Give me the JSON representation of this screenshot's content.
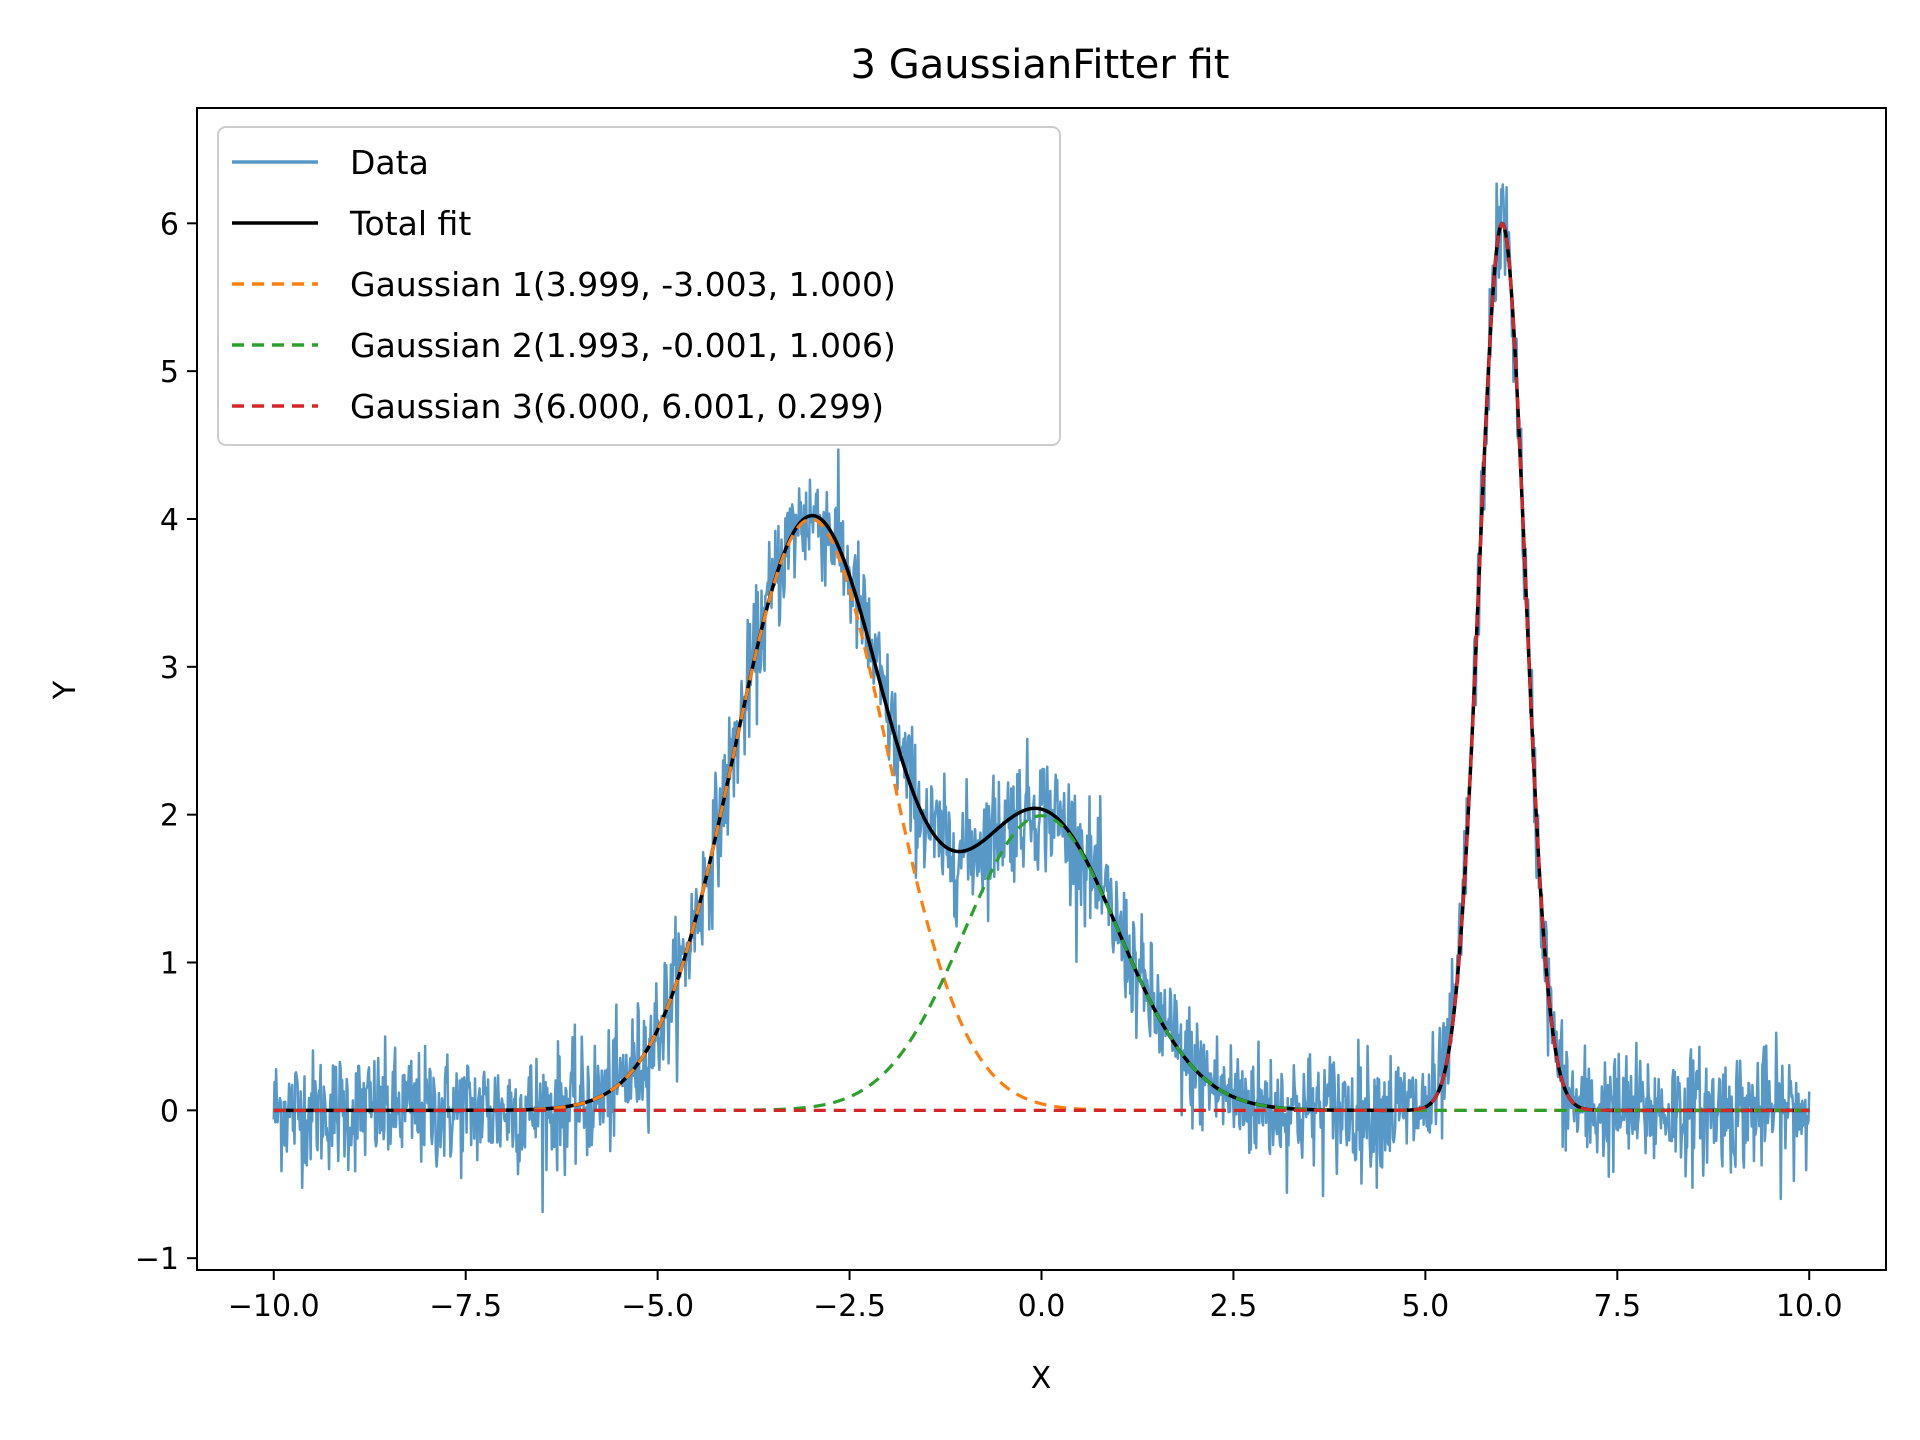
{
  "chart_data": {
    "type": "line",
    "title": "3 GaussianFitter fit",
    "xlabel": "X",
    "ylabel": "Y",
    "xlim": [
      -11.0,
      11.0
    ],
    "ylim": [
      -1.08,
      6.78
    ],
    "xticks": [
      -10.0,
      -7.5,
      -5.0,
      -2.5,
      0.0,
      2.5,
      5.0,
      7.5,
      10.0
    ],
    "xtick_labels": [
      "−10.0",
      "−7.5",
      "−5.0",
      "−2.5",
      "0.0",
      "2.5",
      "5.0",
      "7.5",
      "10.0"
    ],
    "yticks": [
      -1,
      0,
      1,
      2,
      3,
      4,
      5,
      6
    ],
    "ytick_labels": [
      "−1",
      "0",
      "1",
      "2",
      "3",
      "4",
      "5",
      "6"
    ],
    "grid": false,
    "legend_position": "top-left",
    "x_range": [
      -10.0,
      10.0
    ],
    "noise_amplitude": 0.2,
    "series": [
      {
        "name": "Data",
        "kind": "noisy",
        "color": "#5798c7",
        "style": "solid"
      },
      {
        "name": "Total fit",
        "kind": "sum",
        "color": "#000000",
        "style": "solid"
      },
      {
        "name": "Gaussian 1(3.999, -3.003, 1.000)",
        "kind": "gaussian",
        "amplitude": 3.999,
        "mean": -3.003,
        "sigma": 1.0,
        "color": "#ff7f0e",
        "style": "dashed"
      },
      {
        "name": "Gaussian 2(1.993, -0.001, 1.006)",
        "kind": "gaussian",
        "amplitude": 1.993,
        "mean": -0.001,
        "sigma": 1.006,
        "color": "#2ca02c",
        "style": "dashed"
      },
      {
        "name": "Gaussian 3(6.000, 6.001, 0.299)",
        "kind": "gaussian",
        "amplitude": 6.0,
        "mean": 6.001,
        "sigma": 0.299,
        "color": "#d62728",
        "style": "dashed"
      }
    ]
  }
}
